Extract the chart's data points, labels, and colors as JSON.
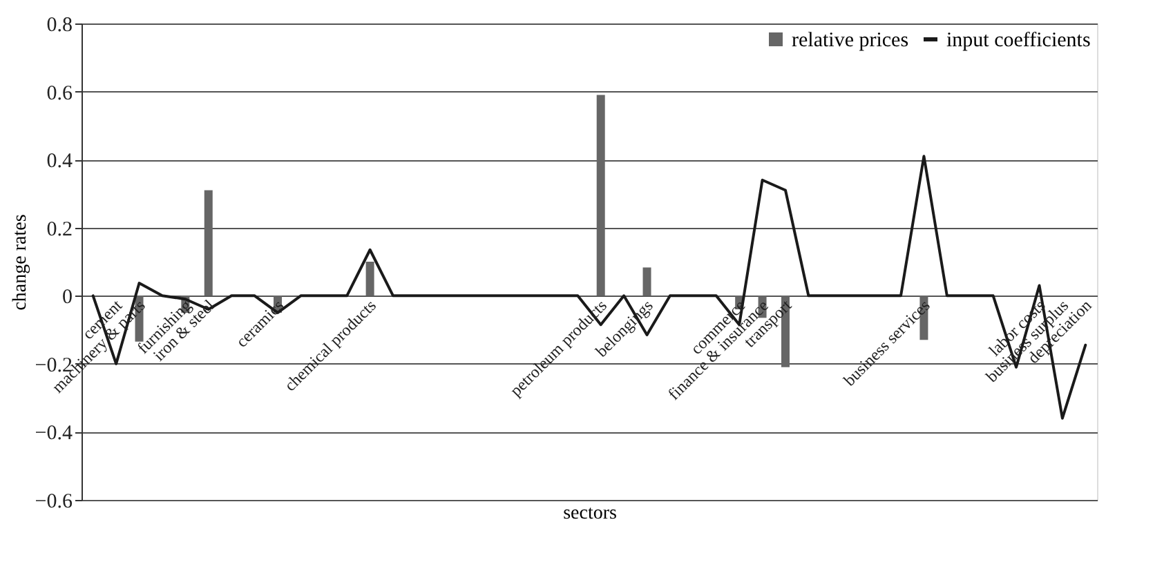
{
  "chart_data": {
    "type": "bar",
    "xlabel": "sectors",
    "ylabel": "change rates",
    "categories": [
      null,
      "cement",
      "machinery & parts",
      null,
      "furnishing",
      "iron & steel",
      null,
      null,
      "ceramics",
      null,
      null,
      null,
      "chemical products",
      null,
      null,
      null,
      null,
      null,
      null,
      null,
      null,
      null,
      "petroleum products",
      null,
      "belongings",
      null,
      null,
      null,
      "commerce",
      "finance & insurance",
      "transport",
      null,
      null,
      null,
      null,
      null,
      "business services",
      null,
      null,
      null,
      null,
      "labor costs",
      "business surplus",
      "depreciation"
    ],
    "series": [
      {
        "name": "relative prices",
        "color": "#666666",
        "values": [
          null,
          null,
          -0.135,
          null,
          -0.05,
          0.31,
          null,
          null,
          -0.05,
          null,
          null,
          null,
          0.1,
          null,
          null,
          null,
          null,
          null,
          null,
          null,
          null,
          null,
          0.59,
          null,
          0.083,
          null,
          null,
          null,
          -0.04,
          -0.065,
          -0.21,
          null,
          null,
          null,
          null,
          null,
          -0.13,
          null,
          null,
          null,
          null,
          null,
          null,
          null
        ]
      },
      {
        "name": "input coefficients",
        "type": "line",
        "color": "#1a1a1a",
        "values": [
          0,
          -0.2,
          0.037,
          0,
          -0.01,
          -0.04,
          0,
          0,
          -0.05,
          0,
          0,
          0,
          0.135,
          0,
          0,
          0,
          0,
          0,
          0,
          0,
          0,
          0,
          -0.085,
          0,
          -0.115,
          0,
          0,
          0,
          -0.085,
          0.34,
          0.31,
          0,
          0,
          0,
          0,
          0,
          0.41,
          0,
          0,
          0,
          -0.21,
          0.03,
          -0.36,
          -0.145
        ]
      }
    ],
    "ylim": [
      -0.6,
      0.8
    ],
    "yticks": [
      -0.6,
      -0.4,
      -0.2,
      0,
      0.2,
      0.4,
      0.6,
      0.8
    ],
    "grid": "y",
    "legend": "top right",
    "line_style": "solid",
    "marker": "none"
  }
}
